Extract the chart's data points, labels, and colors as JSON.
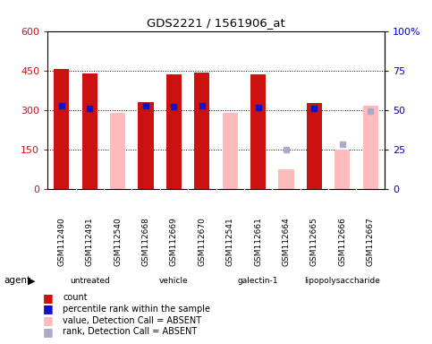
{
  "title": "GDS2221 / 1561906_at",
  "samples": [
    "GSM112490",
    "GSM112491",
    "GSM112540",
    "GSM112668",
    "GSM112669",
    "GSM112670",
    "GSM112541",
    "GSM112661",
    "GSM112664",
    "GSM112665",
    "GSM112666",
    "GSM112667"
  ],
  "groups": [
    {
      "label": "untreated",
      "indices": [
        0,
        1,
        2
      ],
      "color": "#ccffcc"
    },
    {
      "label": "vehicle",
      "indices": [
        3,
        4,
        5
      ],
      "color": "#99ee99"
    },
    {
      "label": "galectin-1",
      "indices": [
        6,
        7,
        8
      ],
      "color": "#55dd55"
    },
    {
      "label": "lipopolysaccharide",
      "indices": [
        9,
        10,
        11
      ],
      "color": "#33cc33"
    }
  ],
  "count_present": [
    455,
    438,
    null,
    330,
    437,
    443,
    null,
    437,
    null,
    328,
    null,
    null
  ],
  "count_absent": [
    null,
    null,
    290,
    null,
    null,
    null,
    288,
    null,
    75,
    null,
    150,
    315
  ],
  "pct_present": [
    315,
    308,
    null,
    315,
    313,
    318,
    null,
    310,
    null,
    305,
    null,
    null
  ],
  "pct_absent": [
    null,
    null,
    null,
    null,
    null,
    null,
    null,
    null,
    150,
    null,
    170,
    295
  ],
  "ylim_left": [
    0,
    600
  ],
  "ylim_right": [
    0,
    100
  ],
  "yticks_left": [
    0,
    150,
    300,
    450,
    600
  ],
  "yticks_right": [
    0,
    25,
    50,
    75,
    100
  ],
  "yticklabels_right": [
    "0",
    "25",
    "50",
    "75",
    "100%"
  ],
  "bar_width": 0.55,
  "count_color": "#cc1111",
  "absent_color": "#ffbbbb",
  "pct_color": "#1111cc",
  "pct_absent_color": "#aaaacc",
  "bg_color": "#ffffff",
  "left_tick_color": "#cc1111",
  "right_tick_color": "#0000cc",
  "grid_yticks": [
    150,
    300,
    450
  ],
  "legend": [
    {
      "color": "#cc1111",
      "label": "count"
    },
    {
      "color": "#1111cc",
      "label": "percentile rank within the sample"
    },
    {
      "color": "#ffbbbb",
      "label": "value, Detection Call = ABSENT"
    },
    {
      "color": "#aaaacc",
      "label": "rank, Detection Call = ABSENT"
    }
  ]
}
